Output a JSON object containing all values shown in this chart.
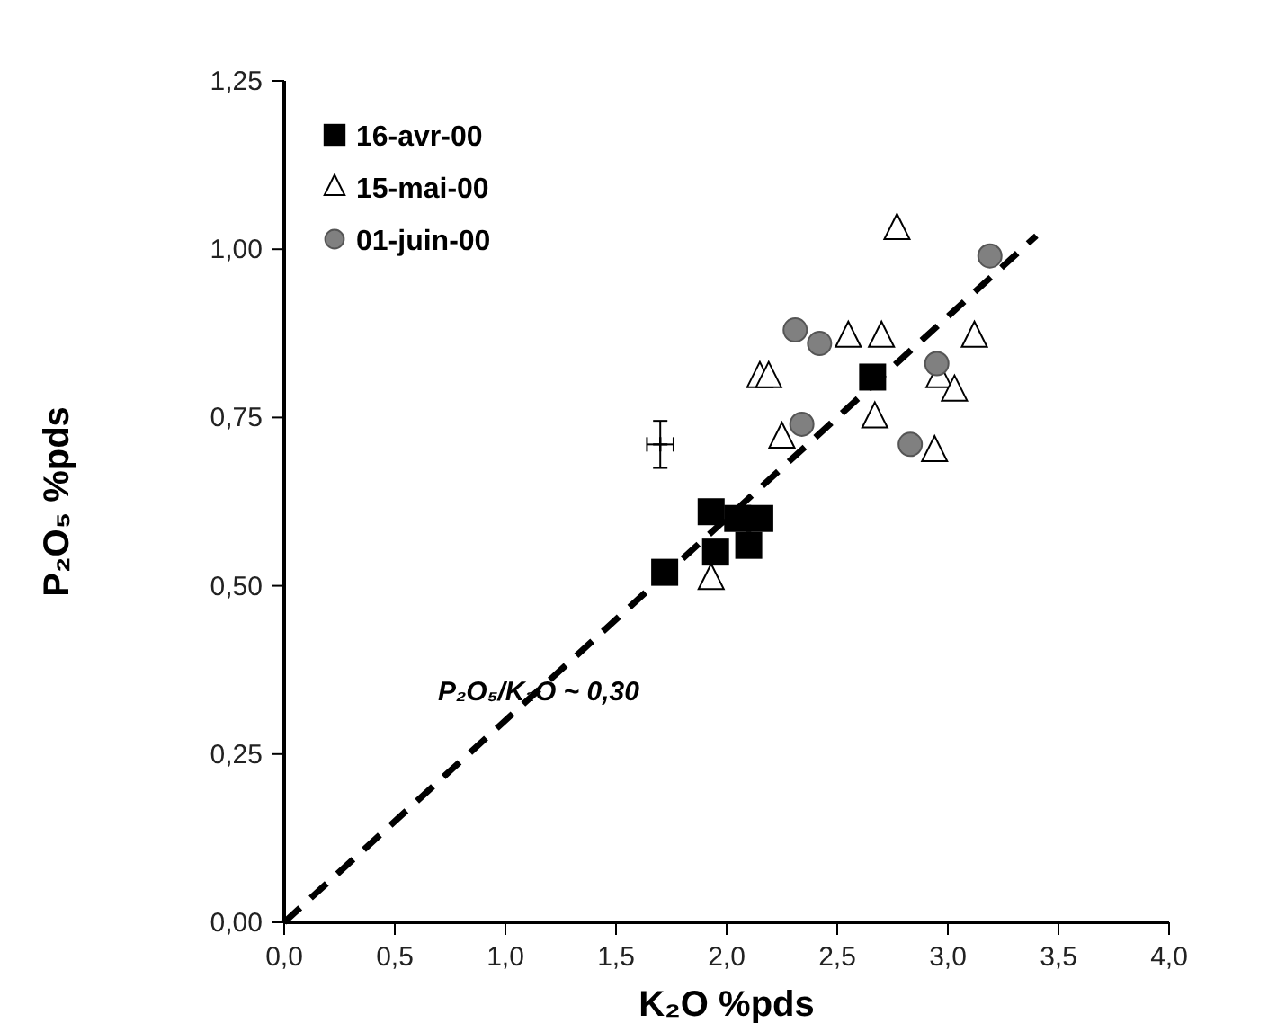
{
  "chart_data": {
    "type": "scatter",
    "xlabel": "K₂O %pds",
    "ylabel": "P₂O₅ %pds",
    "xlim": [
      0,
      4
    ],
    "ylim": [
      0,
      1.25
    ],
    "xticks": [
      {
        "value": 0,
        "label": "0,0"
      },
      {
        "value": 0.5,
        "label": "0,5"
      },
      {
        "value": 1,
        "label": "1,0"
      },
      {
        "value": 1.5,
        "label": "1,5"
      },
      {
        "value": 2,
        "label": "2,0"
      },
      {
        "value": 2.5,
        "label": "2,5"
      },
      {
        "value": 3,
        "label": "3,0"
      },
      {
        "value": 3.5,
        "label": "3,5"
      },
      {
        "value": 4,
        "label": "4,0"
      }
    ],
    "yticks": [
      {
        "value": 0,
        "label": "0,00"
      },
      {
        "value": 0.25,
        "label": "0,25"
      },
      {
        "value": 0.5,
        "label": "0,50"
      },
      {
        "value": 0.75,
        "label": "0,75"
      },
      {
        "value": 1,
        "label": "1,00"
      },
      {
        "value": 1.25,
        "label": "1,25"
      }
    ],
    "grid": false,
    "legend": "top left",
    "annotations": [
      {
        "text": "P₂O₅/K₂O ~ 0,30",
        "x": 1.15,
        "y": 0.33
      }
    ],
    "series": [
      {
        "type": "line",
        "color": "#000000",
        "line_style": "dashed",
        "marker": "none",
        "x": [
          0,
          3.4
        ],
        "values": [
          0,
          1.02
        ]
      },
      {
        "type": "scatter",
        "color": "#000000",
        "marker": "cross",
        "x": [
          1.7
        ],
        "values": [
          0.71
        ],
        "errors": [
          0.035
        ],
        "xerrors": [
          0.06
        ]
      },
      {
        "name": "16-avr-00",
        "color": "#000000",
        "marker": "square",
        "x": [
          1.72,
          1.93,
          1.95,
          2.05,
          2.15,
          2.1,
          2.66
        ],
        "values": [
          0.52,
          0.61,
          0.55,
          0.6,
          0.6,
          0.56,
          0.81
        ]
      },
      {
        "name": "15-mai-00",
        "color": "#ffffff",
        "marker": "triangle",
        "x": [
          2.77,
          2.55,
          2.7,
          3.12,
          2.15,
          2.19,
          2.25,
          2.67,
          2.96,
          3.03,
          2.94,
          1.93
        ],
        "values": [
          1.03,
          0.87,
          0.87,
          0.87,
          0.81,
          0.81,
          0.72,
          0.75,
          0.81,
          0.79,
          0.7,
          0.51
        ]
      },
      {
        "name": "01-juin-00",
        "color": "#808080",
        "marker": "circle",
        "x": [
          3.19,
          2.31,
          2.42,
          2.95,
          2.34,
          2.83
        ],
        "values": [
          0.99,
          0.88,
          0.86,
          0.83,
          0.74,
          0.71
        ]
      }
    ]
  }
}
